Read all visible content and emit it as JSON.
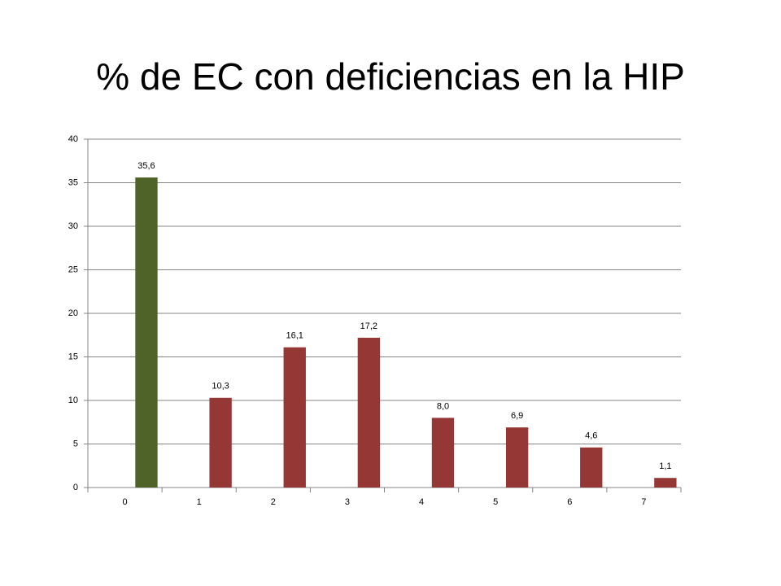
{
  "chart_data": {
    "type": "bar",
    "title": "% de EC con deficiencias en la HIP",
    "categories": [
      "0",
      "1",
      "2",
      "3",
      "4",
      "5",
      "6",
      "7"
    ],
    "values": [
      35.6,
      10.3,
      16.1,
      17.2,
      8.0,
      6.9,
      4.6,
      1.1
    ],
    "value_labels": [
      "35,6",
      "10,3",
      "16,1",
      "17,2",
      "8,0",
      "6,9",
      "4,6",
      "1,1"
    ],
    "colors": [
      "#4f6228",
      "#953735",
      "#953735",
      "#953735",
      "#953735",
      "#953735",
      "#953735",
      "#953735"
    ],
    "ylim": [
      0,
      40
    ],
    "yticks": [
      0,
      5,
      10,
      15,
      20,
      25,
      30,
      35,
      40
    ],
    "grid": true
  }
}
